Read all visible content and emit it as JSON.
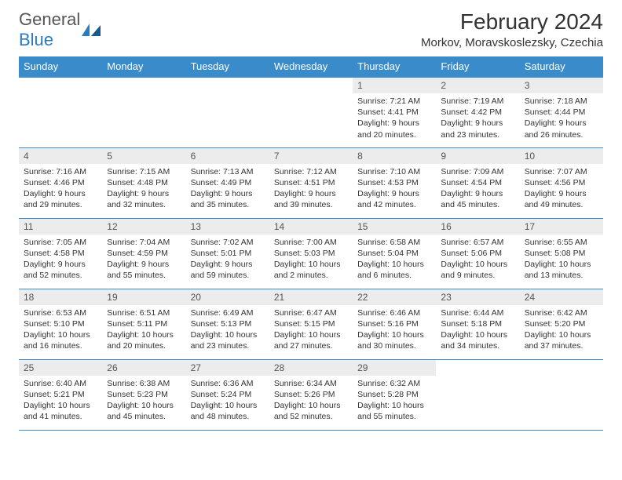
{
  "logo": {
    "part1": "General",
    "part2": "Blue"
  },
  "title": "February 2024",
  "location": "Morkov, Moravskoslezsky, Czechia",
  "style": {
    "header_bg": "#3a8bc9",
    "header_fg": "#ffffff",
    "daynum_bg": "#ececec",
    "daynum_fg": "#555555",
    "border_color": "#3a8bc9",
    "body_fg": "#333333",
    "title_fontsize": 28,
    "location_fontsize": 15,
    "th_fontsize": 13,
    "cell_fontsize": 10.5
  },
  "weekdays": [
    "Sunday",
    "Monday",
    "Tuesday",
    "Wednesday",
    "Thursday",
    "Friday",
    "Saturday"
  ],
  "grid": [
    [
      null,
      null,
      null,
      null,
      {
        "n": "1",
        "sr": "7:21 AM",
        "ss": "4:41 PM",
        "dl": "9 hours and 20 minutes."
      },
      {
        "n": "2",
        "sr": "7:19 AM",
        "ss": "4:42 PM",
        "dl": "9 hours and 23 minutes."
      },
      {
        "n": "3",
        "sr": "7:18 AM",
        "ss": "4:44 PM",
        "dl": "9 hours and 26 minutes."
      }
    ],
    [
      {
        "n": "4",
        "sr": "7:16 AM",
        "ss": "4:46 PM",
        "dl": "9 hours and 29 minutes."
      },
      {
        "n": "5",
        "sr": "7:15 AM",
        "ss": "4:48 PM",
        "dl": "9 hours and 32 minutes."
      },
      {
        "n": "6",
        "sr": "7:13 AM",
        "ss": "4:49 PM",
        "dl": "9 hours and 35 minutes."
      },
      {
        "n": "7",
        "sr": "7:12 AM",
        "ss": "4:51 PM",
        "dl": "9 hours and 39 minutes."
      },
      {
        "n": "8",
        "sr": "7:10 AM",
        "ss": "4:53 PM",
        "dl": "9 hours and 42 minutes."
      },
      {
        "n": "9",
        "sr": "7:09 AM",
        "ss": "4:54 PM",
        "dl": "9 hours and 45 minutes."
      },
      {
        "n": "10",
        "sr": "7:07 AM",
        "ss": "4:56 PM",
        "dl": "9 hours and 49 minutes."
      }
    ],
    [
      {
        "n": "11",
        "sr": "7:05 AM",
        "ss": "4:58 PM",
        "dl": "9 hours and 52 minutes."
      },
      {
        "n": "12",
        "sr": "7:04 AM",
        "ss": "4:59 PM",
        "dl": "9 hours and 55 minutes."
      },
      {
        "n": "13",
        "sr": "7:02 AM",
        "ss": "5:01 PM",
        "dl": "9 hours and 59 minutes."
      },
      {
        "n": "14",
        "sr": "7:00 AM",
        "ss": "5:03 PM",
        "dl": "10 hours and 2 minutes."
      },
      {
        "n": "15",
        "sr": "6:58 AM",
        "ss": "5:04 PM",
        "dl": "10 hours and 6 minutes."
      },
      {
        "n": "16",
        "sr": "6:57 AM",
        "ss": "5:06 PM",
        "dl": "10 hours and 9 minutes."
      },
      {
        "n": "17",
        "sr": "6:55 AM",
        "ss": "5:08 PM",
        "dl": "10 hours and 13 minutes."
      }
    ],
    [
      {
        "n": "18",
        "sr": "6:53 AM",
        "ss": "5:10 PM",
        "dl": "10 hours and 16 minutes."
      },
      {
        "n": "19",
        "sr": "6:51 AM",
        "ss": "5:11 PM",
        "dl": "10 hours and 20 minutes."
      },
      {
        "n": "20",
        "sr": "6:49 AM",
        "ss": "5:13 PM",
        "dl": "10 hours and 23 minutes."
      },
      {
        "n": "21",
        "sr": "6:47 AM",
        "ss": "5:15 PM",
        "dl": "10 hours and 27 minutes."
      },
      {
        "n": "22",
        "sr": "6:46 AM",
        "ss": "5:16 PM",
        "dl": "10 hours and 30 minutes."
      },
      {
        "n": "23",
        "sr": "6:44 AM",
        "ss": "5:18 PM",
        "dl": "10 hours and 34 minutes."
      },
      {
        "n": "24",
        "sr": "6:42 AM",
        "ss": "5:20 PM",
        "dl": "10 hours and 37 minutes."
      }
    ],
    [
      {
        "n": "25",
        "sr": "6:40 AM",
        "ss": "5:21 PM",
        "dl": "10 hours and 41 minutes."
      },
      {
        "n": "26",
        "sr": "6:38 AM",
        "ss": "5:23 PM",
        "dl": "10 hours and 45 minutes."
      },
      {
        "n": "27",
        "sr": "6:36 AM",
        "ss": "5:24 PM",
        "dl": "10 hours and 48 minutes."
      },
      {
        "n": "28",
        "sr": "6:34 AM",
        "ss": "5:26 PM",
        "dl": "10 hours and 52 minutes."
      },
      {
        "n": "29",
        "sr": "6:32 AM",
        "ss": "5:28 PM",
        "dl": "10 hours and 55 minutes."
      },
      null,
      null
    ]
  ]
}
